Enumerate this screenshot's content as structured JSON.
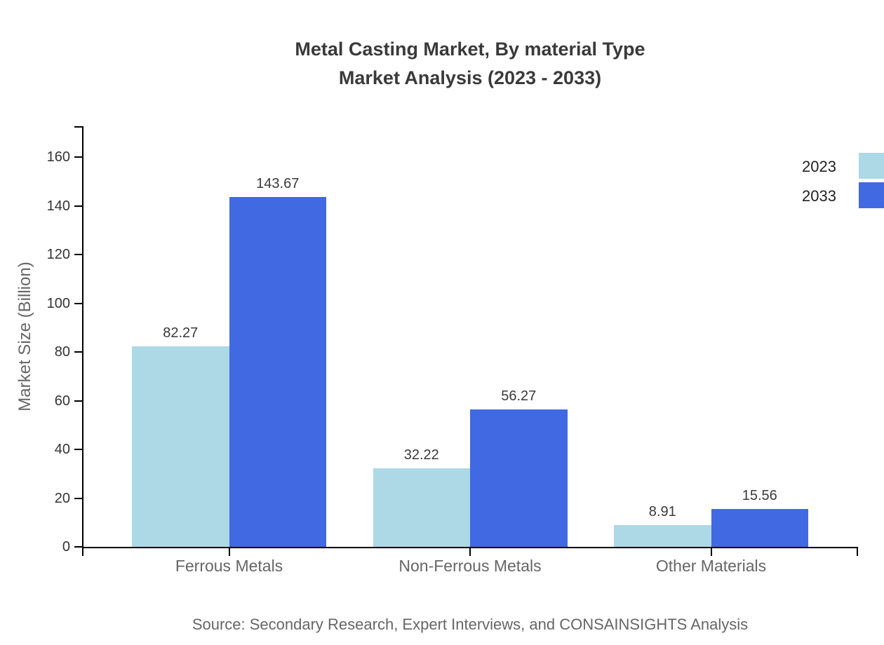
{
  "chart": {
    "title_line1": "Metal Casting Market, By material Type",
    "title_line2": "Market Analysis (2023 - 2033)",
    "ylabel": "Market Size (Billion)",
    "source": "Source: Secondary Research, Expert Interviews, and CONSAINSIGHTS Analysis"
  },
  "colors": {
    "series_2023": "#ADD8E6",
    "series_2033": "#4169E1",
    "axis": "#000000",
    "title_text": "#3A3A3A",
    "tick_text": "#333333",
    "muted_text": "#666666",
    "value_text": "#3A3A3A",
    "legend_text": "#222222",
    "background": "#FFFFFF"
  },
  "chart_data": {
    "type": "bar",
    "title": "Metal Casting Market, By material Type - Market Analysis (2023 - 2033)",
    "categories": [
      "Ferrous Metals",
      "Non-Ferrous Metals",
      "Other Materials"
    ],
    "series": [
      {
        "name": "2023",
        "color": "#ADD8E6",
        "values": [
          82.27,
          32.22,
          8.91
        ]
      },
      {
        "name": "2033",
        "color": "#4169E1",
        "values": [
          143.67,
          56.27,
          15.56
        ]
      }
    ],
    "value_labels": [
      "82.27",
      "143.67",
      "32.22",
      "56.27",
      "8.91",
      "15.56"
    ],
    "xlabel": "",
    "ylabel": "Market Size (Billion)",
    "ylim": [
      0,
      172
    ],
    "yticks": [
      0,
      20,
      40,
      60,
      80,
      100,
      120,
      140,
      160
    ],
    "grid": false,
    "legend_position": "top-right-edge",
    "value_label_format": "2-decimals"
  }
}
